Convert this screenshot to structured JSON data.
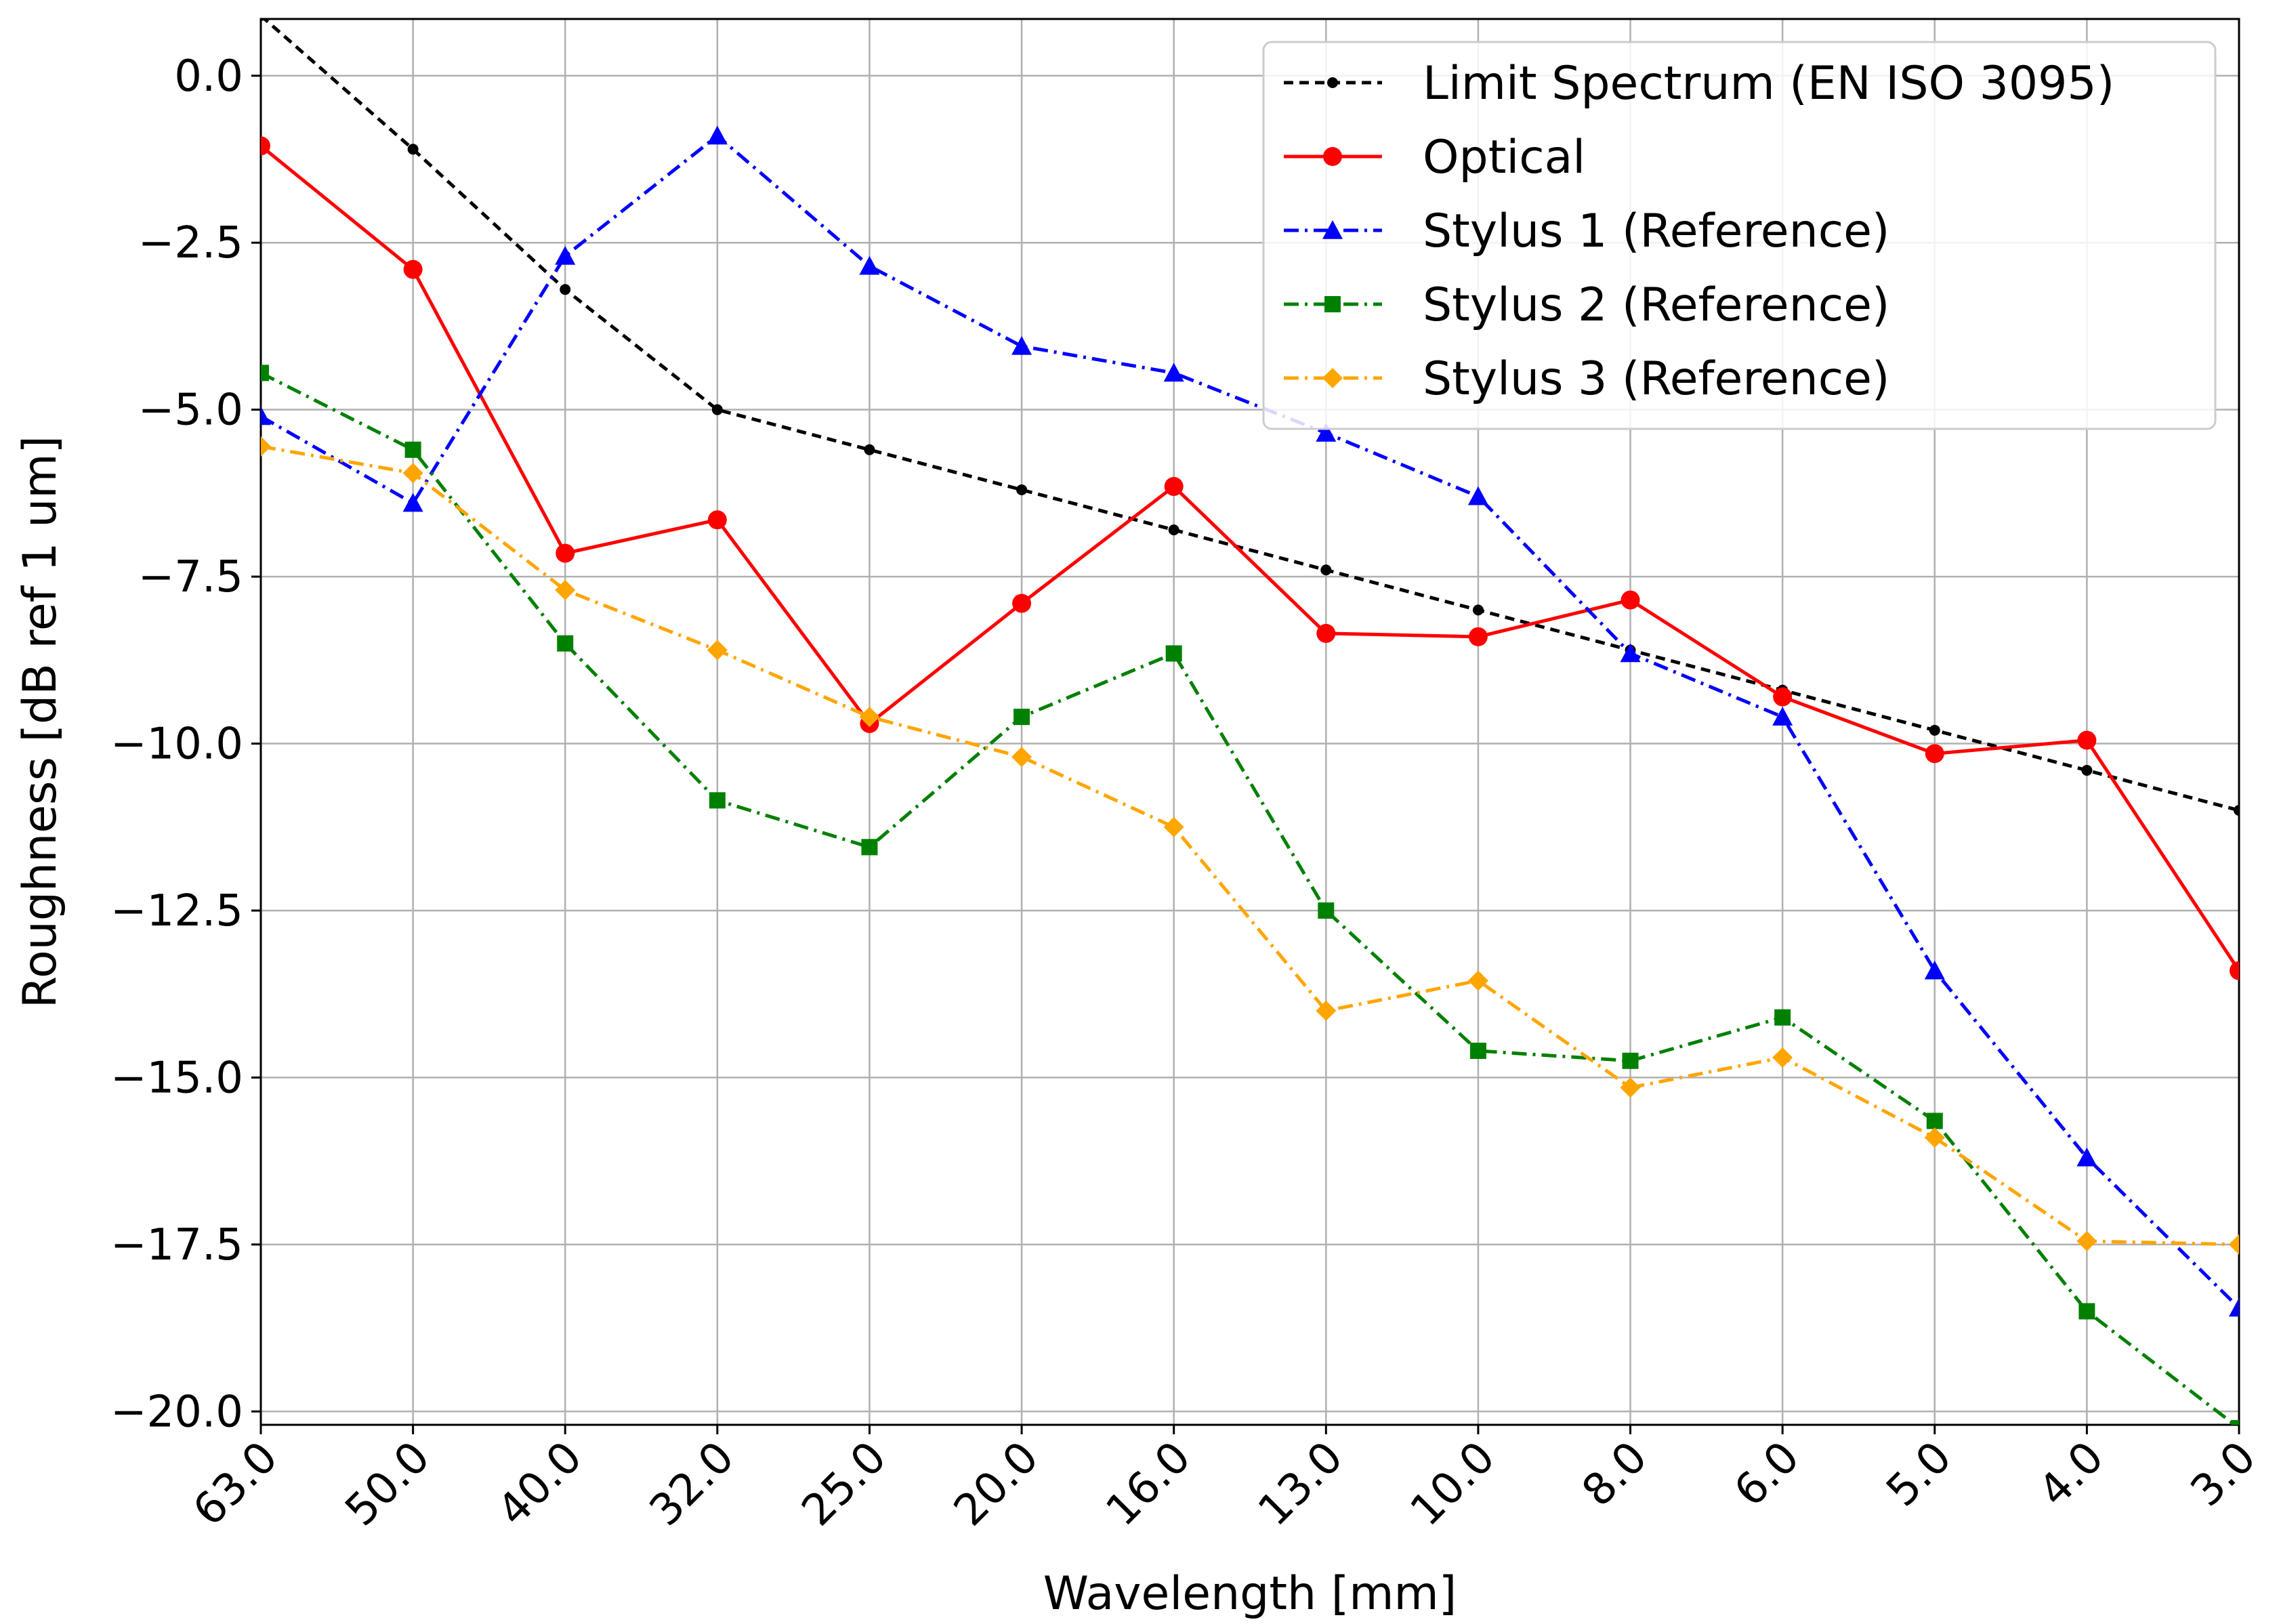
{
  "chart_data": {
    "type": "line",
    "title": "",
    "xlabel": "Wavelength [mm]",
    "ylabel": "Roughness [dB ref 1 um]",
    "categories": [
      "63.0",
      "50.0",
      "40.0",
      "32.0",
      "25.0",
      "20.0",
      "16.0",
      "13.0",
      "10.0",
      "8.0",
      "6.0",
      "5.0",
      "4.0",
      "3.0"
    ],
    "yticks": [
      0.0,
      -2.5,
      -5.0,
      -7.5,
      -10.0,
      -12.5,
      -15.0,
      -17.5,
      -20.0
    ],
    "ytick_labels": [
      "0.0",
      "−2.5",
      "−5.0",
      "−7.5",
      "−10.0",
      "−12.5",
      "−15.0",
      "−17.5",
      "−20.0"
    ],
    "ylim": [
      -20.2,
      0.85
    ],
    "grid": true,
    "legend_position": "top-right",
    "series": [
      {
        "name": "Limit Spectrum (EN ISO 3095)",
        "color": "#000000",
        "dash": "dashed",
        "marker": "dot",
        "values": [
          0.9,
          -1.1,
          -3.2,
          -5.0,
          -5.6,
          -6.2,
          -6.8,
          -7.4,
          -8.0,
          -8.6,
          -9.2,
          -9.8,
          -10.4,
          -11.0
        ]
      },
      {
        "name": "Optical",
        "color": "#ff0000",
        "dash": "solid",
        "marker": "circle",
        "values": [
          -1.05,
          -2.9,
          -7.15,
          -6.65,
          -9.7,
          -7.9,
          -6.15,
          -8.35,
          -8.4,
          -7.85,
          -9.3,
          -10.15,
          -9.95,
          -13.4
        ]
      },
      {
        "name": "Stylus 1 (Reference)",
        "color": "#0000ff",
        "dash": "dashdot",
        "marker": "triangle",
        "values": [
          -5.1,
          -6.4,
          -2.7,
          -0.9,
          -2.85,
          -4.05,
          -4.45,
          -5.35,
          -6.3,
          -8.65,
          -9.6,
          -13.4,
          -16.2,
          -18.45
        ]
      },
      {
        "name": "Stylus 2 (Reference)",
        "color": "#008000",
        "dash": "dashdot",
        "marker": "square",
        "values": [
          -4.45,
          -5.6,
          -8.5,
          -10.85,
          -11.55,
          -9.6,
          -8.65,
          -12.5,
          -14.6,
          -14.75,
          -14.1,
          -15.65,
          -18.5,
          -20.25
        ]
      },
      {
        "name": "Stylus 3 (Reference)",
        "color": "#ffa500",
        "dash": "dashdot",
        "marker": "diamond",
        "values": [
          -5.55,
          -5.95,
          -7.7,
          -8.6,
          -9.6,
          -10.2,
          -11.25,
          -14.0,
          -13.55,
          -15.15,
          -14.7,
          -15.9,
          -17.45,
          -17.5
        ]
      }
    ]
  }
}
